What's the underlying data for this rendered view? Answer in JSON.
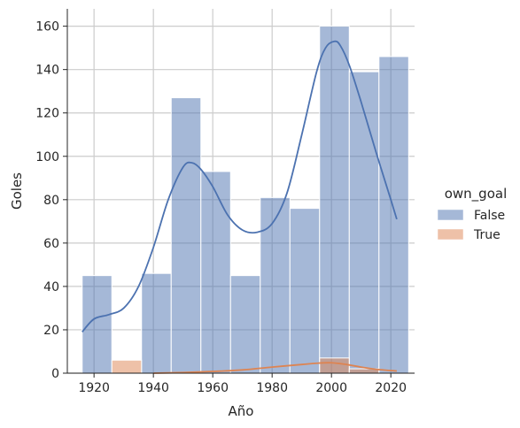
{
  "chart_data": {
    "type": "histogram",
    "xlabel": "Año",
    "ylabel": "Goles",
    "xlim": [
      1911,
      2028
    ],
    "ylim": [
      0,
      168
    ],
    "xticks": [
      1920,
      1940,
      1960,
      1980,
      2000,
      2020
    ],
    "yticks": [
      0,
      20,
      40,
      60,
      80,
      100,
      120,
      140,
      160
    ],
    "grid": true,
    "bin_edges": [
      1916,
      1926,
      1936,
      1946,
      1956,
      1966,
      1976,
      1986,
      1996,
      2006,
      2016,
      2026
    ],
    "legend": {
      "title": "own_goal",
      "placement": "center-right"
    },
    "series": [
      {
        "name": "False",
        "color": "#4c72b0",
        "counts": [
          45,
          0,
          46,
          127,
          93,
          45,
          81,
          76,
          160,
          139,
          146
        ],
        "kde": {
          "x": [
            1916,
            1920,
            1925,
            1930,
            1935,
            1940,
            1945,
            1950,
            1953,
            1956,
            1960,
            1965,
            1970,
            1975,
            1980,
            1985,
            1990,
            1995,
            1998,
            2001,
            2003,
            2006,
            2010,
            2015,
            2020,
            2022
          ],
          "y": [
            19,
            25,
            27,
            30,
            40,
            58,
            80,
            95,
            97,
            94,
            86,
            73,
            66,
            65,
            69,
            83,
            110,
            139,
            150,
            153,
            151,
            142,
            125,
            102,
            80,
            71
          ]
        }
      },
      {
        "name": "True",
        "color": "#dd8452",
        "counts": [
          0,
          6,
          0,
          0,
          0,
          0,
          0,
          0,
          7,
          2,
          0
        ],
        "kde": {
          "x": [
            1940,
            1950,
            1960,
            1970,
            1980,
            1990,
            1995,
            2000,
            2005,
            2010,
            2015,
            2022
          ],
          "y": [
            0,
            0.3,
            0.8,
            1.5,
            2.8,
            4,
            4.6,
            4.8,
            4,
            2.8,
            1.8,
            1
          ]
        }
      }
    ]
  }
}
